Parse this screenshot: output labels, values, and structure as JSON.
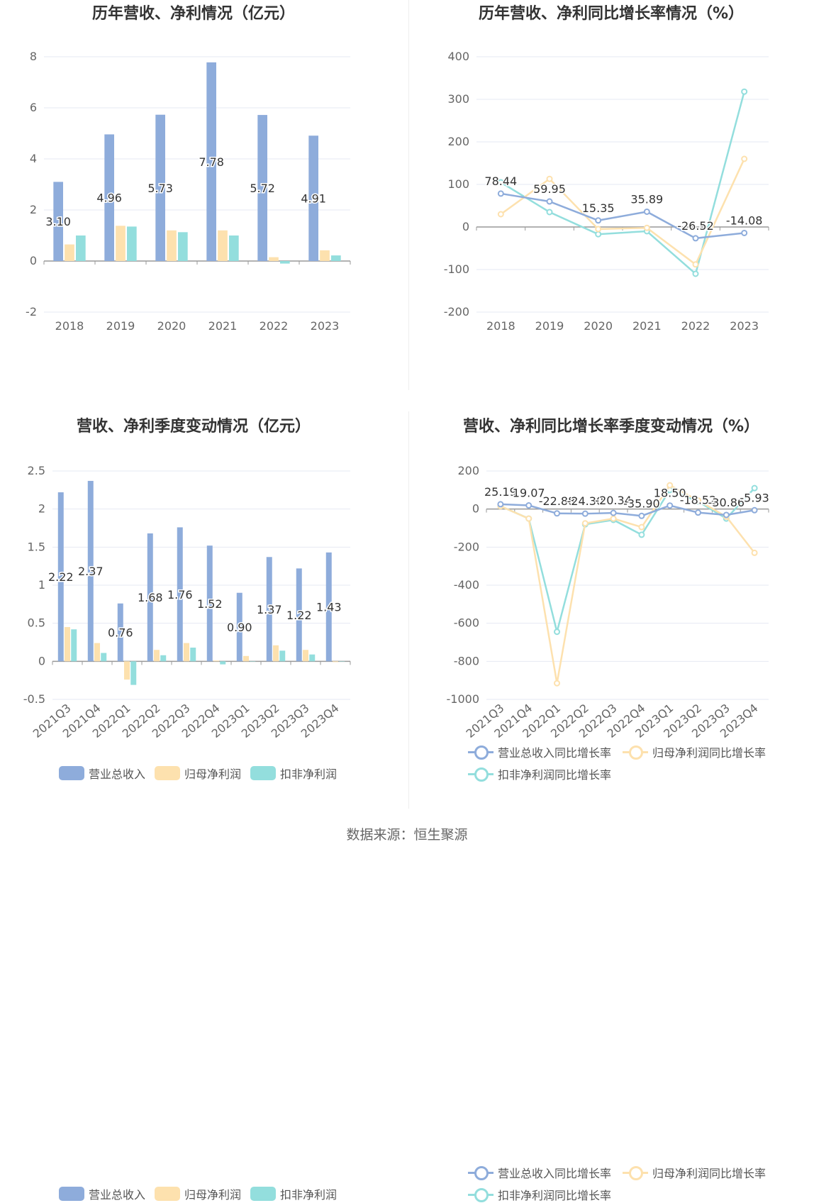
{
  "colors": {
    "revenue": "#8eacdb",
    "parent_profit": "#fde1ae",
    "deducted_profit": "#93dedd",
    "axis_text": "#666666",
    "grid": "#e6e9f3",
    "zero_line": "#999999"
  },
  "source_text": "数据来源：恒生聚源",
  "chart_data": [
    {
      "id": "annual-values",
      "type": "bar",
      "title": "历年营收、净利情况（亿元）",
      "categories": [
        "2018",
        "2019",
        "2020",
        "2021",
        "2022",
        "2023"
      ],
      "ylim": [
        -2,
        8
      ],
      "yticks": [
        -2,
        0,
        2,
        4,
        6,
        8
      ],
      "grid": true,
      "series": [
        {
          "name": "营业总收入",
          "values": [
            3.1,
            4.96,
            5.73,
            7.78,
            5.72,
            4.91
          ],
          "labels": [
            "3.10",
            "4.96",
            "5.73",
            "7.78",
            "5.72",
            "4.91"
          ]
        },
        {
          "name": "归母净利润",
          "values": [
            0.65,
            1.38,
            1.2,
            1.2,
            0.15,
            0.42
          ]
        },
        {
          "name": "扣非净利润",
          "values": [
            1.0,
            1.35,
            1.13,
            1.0,
            -0.1,
            0.22
          ]
        }
      ],
      "legend": "bottom"
    },
    {
      "id": "annual-growth",
      "type": "line",
      "title": "历年营收、净利同比增长率情况（%）",
      "categories": [
        "2018",
        "2019",
        "2020",
        "2021",
        "2022",
        "2023"
      ],
      "ylim": [
        -200,
        400
      ],
      "yticks": [
        -200,
        -100,
        0,
        100,
        200,
        300,
        400
      ],
      "grid": true,
      "series": [
        {
          "name": "营业总收入同比增长率",
          "values": [
            78.44,
            59.95,
            15.35,
            35.89,
            -26.52,
            -14.08
          ],
          "labels": [
            "78.44",
            "59.95",
            "15.35",
            "35.89",
            "-26.52",
            "-14.08"
          ]
        },
        {
          "name": "归母净利润同比增长率",
          "values": [
            30,
            113,
            -5,
            -2,
            -88,
            160
          ]
        },
        {
          "name": "扣非净利润同比增长率",
          "values": [
            105,
            35,
            -17,
            -10,
            -110,
            318
          ]
        }
      ],
      "legend": "bottom"
    },
    {
      "id": "quarterly-values",
      "type": "bar",
      "title": "营收、净利季度变动情况（亿元）",
      "categories": [
        "2021Q3",
        "2021Q4",
        "2022Q1",
        "2022Q2",
        "2022Q3",
        "2022Q4",
        "2023Q1",
        "2023Q2",
        "2023Q3",
        "2023Q4"
      ],
      "ylim": [
        -0.5,
        2.5
      ],
      "yticks": [
        -0.5,
        0,
        0.5,
        1,
        1.5,
        2,
        2.5
      ],
      "grid": true,
      "series": [
        {
          "name": "营业总收入",
          "values": [
            2.22,
            2.37,
            0.76,
            1.68,
            1.76,
            1.52,
            0.9,
            1.37,
            1.22,
            1.43
          ],
          "labels": [
            "2.22",
            "2.37",
            "0.76",
            "1.68",
            "1.76",
            "1.52",
            "0.90",
            "1.37",
            "1.22",
            "1.43"
          ]
        },
        {
          "name": "归母净利润",
          "values": [
            0.45,
            0.24,
            -0.24,
            0.15,
            0.24,
            0.01,
            0.07,
            0.21,
            0.15,
            -0.01
          ]
        },
        {
          "name": "扣非净利润",
          "values": [
            0.42,
            0.11,
            -0.31,
            0.08,
            0.18,
            -0.04,
            0.0,
            0.14,
            0.09,
            0.0
          ]
        }
      ],
      "legend": "bottom"
    },
    {
      "id": "quarterly-growth",
      "type": "line",
      "title": "营收、净利同比增长率季度变动情况（%）",
      "categories": [
        "2021Q3",
        "2021Q4",
        "2022Q1",
        "2022Q2",
        "2022Q3",
        "2022Q4",
        "2023Q1",
        "2023Q2",
        "2023Q3",
        "2023Q4"
      ],
      "ylim": [
        -1000,
        200
      ],
      "yticks": [
        -1000,
        -800,
        -600,
        -400,
        -200,
        0,
        200
      ],
      "grid": true,
      "series": [
        {
          "name": "营业总收入同比增长率",
          "values": [
            25.19,
            19.07,
            -22.88,
            -24.3,
            -20.34,
            -35.9,
            18.5,
            -18.52,
            -30.86,
            -5.93
          ],
          "labels": [
            "25.19",
            "19.07",
            "-22.88",
            "-24.30",
            "-20.34",
            "-35.90",
            "18.50",
            "-18.52",
            "-30.86",
            "-5.93"
          ]
        },
        {
          "name": "归母净利润同比增长率",
          "values": [
            15,
            -50,
            -915,
            -75,
            -50,
            -95,
            125,
            45,
            -40,
            -230
          ]
        },
        {
          "name": "扣非净利润同比增长率",
          "values": [
            15,
            -50,
            -645,
            -80,
            -57,
            -135,
            100,
            40,
            -50,
            110
          ]
        }
      ],
      "legend": "bottom"
    }
  ]
}
